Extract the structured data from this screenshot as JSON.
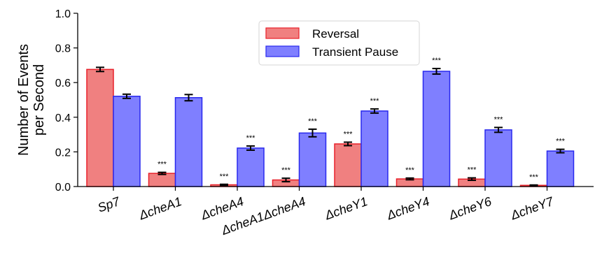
{
  "chart_data": {
    "type": "bar",
    "categories": [
      "Sp7",
      "ΔcheA1",
      "ΔcheA4",
      "ΔcheA1ΔcheA4",
      "ΔcheY1",
      "ΔcheY4",
      "ΔcheY6",
      "ΔcheY7"
    ],
    "series": [
      {
        "name": "Reversal",
        "values": [
          0.676,
          0.076,
          0.01,
          0.038,
          0.246,
          0.044,
          0.043,
          0.007
        ],
        "errors": [
          0.012,
          0.006,
          0.003,
          0.01,
          0.01,
          0.005,
          0.007,
          0.002
        ],
        "significance": [
          "",
          "***",
          "***",
          "***",
          "***",
          "***",
          "***",
          "***"
        ],
        "fill": "#f08080",
        "edge": "#e8202a"
      },
      {
        "name": "Transient Pause",
        "values": [
          0.521,
          0.513,
          0.222,
          0.309,
          0.436,
          0.665,
          0.327,
          0.205
        ],
        "errors": [
          0.012,
          0.018,
          0.012,
          0.022,
          0.012,
          0.016,
          0.014,
          0.01
        ],
        "significance": [
          "",
          "",
          "***",
          "***",
          "***",
          "***",
          "***",
          "***"
        ],
        "fill": "#7f7fff",
        "edge": "#2828ee"
      }
    ],
    "ylabel_lines": [
      "Number of Events",
      "per Second"
    ],
    "xlabel": "",
    "ylim": [
      0,
      1.0
    ],
    "yticks": [
      "0.0",
      "0.2",
      "0.4",
      "0.6",
      "0.8",
      "1.0"
    ],
    "ytick_values": [
      0,
      0.2,
      0.4,
      0.6,
      0.8,
      1.0
    ],
    "legend_position": "top-center",
    "grid": false
  }
}
